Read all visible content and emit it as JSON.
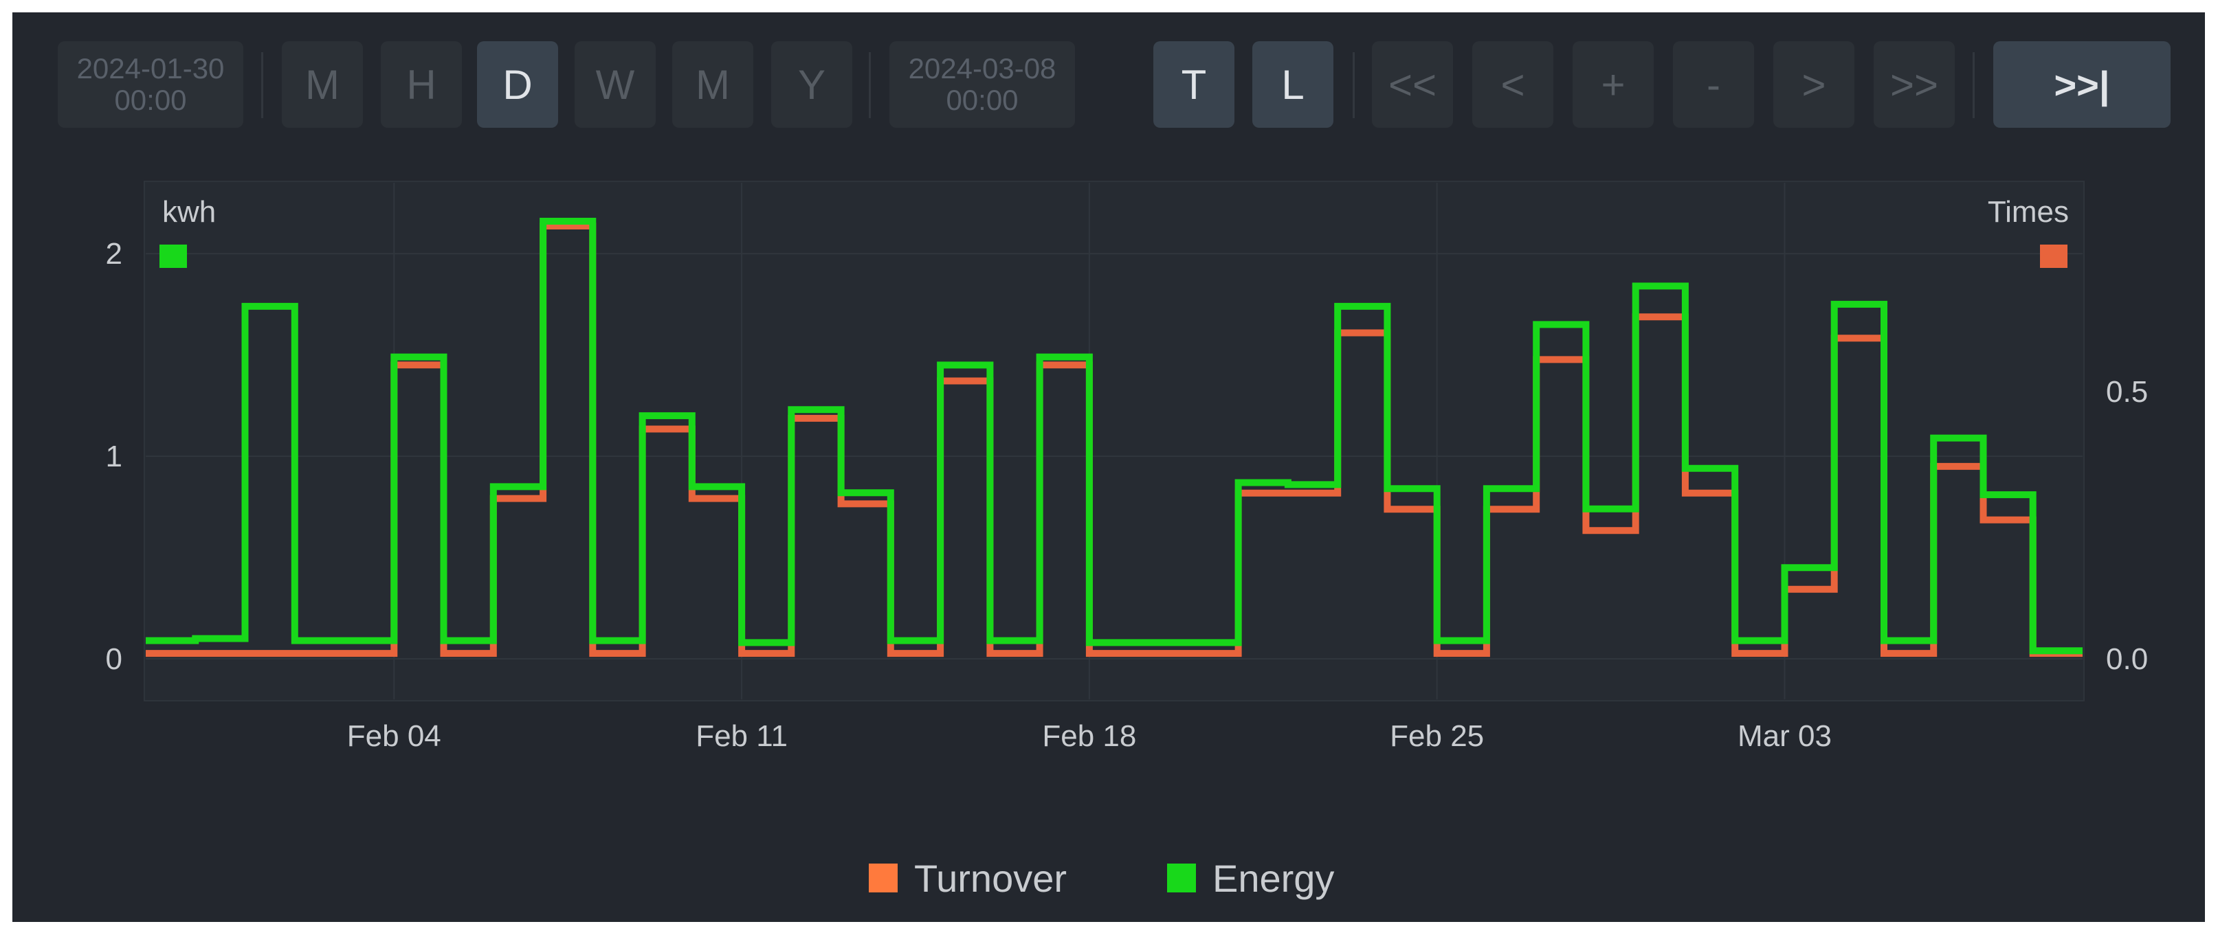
{
  "toolbar": {
    "start_date": {
      "date": "2024-01-30",
      "time": "00:00"
    },
    "end_date": {
      "date": "2024-03-08",
      "time": "00:00"
    },
    "period_buttons": [
      {
        "label": "M",
        "active": false
      },
      {
        "label": "H",
        "active": false
      },
      {
        "label": "D",
        "active": true
      },
      {
        "label": "W",
        "active": false
      },
      {
        "label": "M",
        "active": false
      },
      {
        "label": "Y",
        "active": false
      }
    ],
    "mode_buttons": [
      {
        "label": "T",
        "active": true
      },
      {
        "label": "L",
        "active": true
      }
    ],
    "nav_buttons": [
      "<<",
      "<",
      "+",
      "-",
      ">",
      ">>"
    ],
    "now_button": ">>|"
  },
  "legend": [
    {
      "label": "Turnover",
      "color": "#ff7a3d"
    },
    {
      "label": "Energy",
      "color": "#18d81a"
    }
  ],
  "chart_data": {
    "type": "line",
    "step": true,
    "x_axis": {
      "tick_labels": [
        "Feb 04",
        "Feb 11",
        "Feb 18",
        "Feb 25",
        "Mar 03"
      ],
      "tick_dates": [
        "2024-02-04",
        "2024-02-11",
        "2024-02-18",
        "2024-02-25",
        "2024-03-03"
      ],
      "range": [
        "2024-01-30",
        "2024-03-09"
      ]
    },
    "y_left": {
      "label": "kwh",
      "ticks": [
        0,
        1,
        2
      ],
      "range": [
        -0.2,
        2.35
      ],
      "color": "#18d81a"
    },
    "y_right": {
      "label": "Times",
      "ticks": [
        "0.0",
        "0.5"
      ],
      "tick_values": [
        0,
        0.5
      ],
      "range": [
        -0.076,
        0.891
      ],
      "color": "#e8643c"
    },
    "grid": true,
    "legend_position": "bottom-center",
    "x": [
      "2024-01-30",
      "2024-01-31",
      "2024-02-01",
      "2024-02-02",
      "2024-02-03",
      "2024-02-04",
      "2024-02-05",
      "2024-02-06",
      "2024-02-07",
      "2024-02-08",
      "2024-02-09",
      "2024-02-10",
      "2024-02-11",
      "2024-02-12",
      "2024-02-13",
      "2024-02-14",
      "2024-02-15",
      "2024-02-16",
      "2024-02-17",
      "2024-02-18",
      "2024-02-19",
      "2024-02-20",
      "2024-02-21",
      "2024-02-22",
      "2024-02-23",
      "2024-02-24",
      "2024-02-25",
      "2024-02-26",
      "2024-02-27",
      "2024-02-28",
      "2024-02-29",
      "2024-03-01",
      "2024-03-02",
      "2024-03-03",
      "2024-03-04",
      "2024-03-05",
      "2024-03-06",
      "2024-03-07",
      "2024-03-08"
    ],
    "series": [
      {
        "name": "Energy",
        "axis": "left",
        "color": "#18d81a",
        "values": [
          0.09,
          0.1,
          1.74,
          0.09,
          0.09,
          1.49,
          0.09,
          0.85,
          2.16,
          0.09,
          1.2,
          0.85,
          0.08,
          1.23,
          0.82,
          0.09,
          1.45,
          0.09,
          1.49,
          0.08,
          0.08,
          0.08,
          0.87,
          0.86,
          1.74,
          0.84,
          0.09,
          0.84,
          1.65,
          0.74,
          1.84,
          0.94,
          0.09,
          0.45,
          1.75,
          0.09,
          1.09,
          0.81,
          0.04
        ]
      },
      {
        "name": "Turnover",
        "axis": "right",
        "color": "#e8643c",
        "values": [
          0.01,
          0.01,
          0.01,
          0.01,
          0.01,
          0.55,
          0.01,
          0.3,
          0.81,
          0.01,
          0.43,
          0.3,
          0.01,
          0.45,
          0.29,
          0.01,
          0.52,
          0.01,
          0.55,
          0.01,
          0.01,
          0.01,
          0.31,
          0.31,
          0.61,
          0.28,
          0.01,
          0.28,
          0.56,
          0.24,
          0.64,
          0.31,
          0.01,
          0.13,
          0.6,
          0.01,
          0.36,
          0.26,
          0.01
        ]
      }
    ]
  }
}
